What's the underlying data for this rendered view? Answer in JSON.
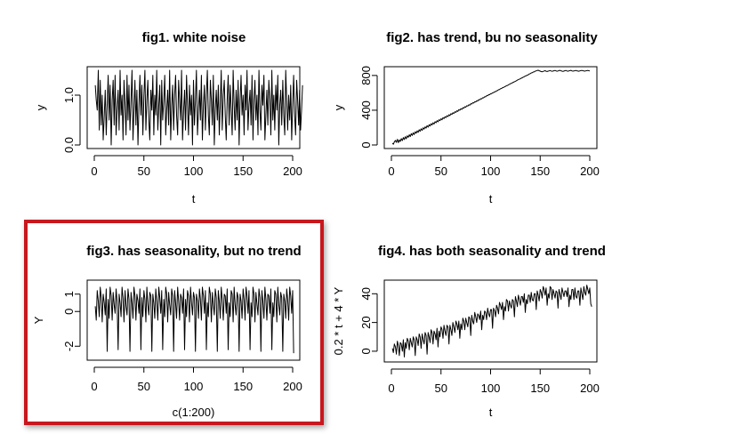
{
  "colors": {
    "highlight": "#c8171e",
    "line": "#000000"
  },
  "chart_data": [
    {
      "type": "line",
      "title": "fig1. white noise",
      "xlabel": "t",
      "ylabel": "y",
      "xlim": [
        0,
        200
      ],
      "ylim": [
        0,
        1.5
      ],
      "xticks": [
        0,
        50,
        100,
        150,
        200
      ],
      "yticks": [
        0.0,
        1.0
      ],
      "ytick_labels": [
        "0.0",
        "1.0"
      ],
      "series": [
        {
          "x_start": 1,
          "x_step": 1,
          "values": [
            1.2,
            0.9,
            0.7,
            1.5,
            0.3,
            1.3,
            0.4,
            1.0,
            0.1,
            0.6,
            1.1,
            0.2,
            0.8,
            1.4,
            0.5,
            1.2,
            0.0,
            0.9,
            1.3,
            0.4,
            1.4,
            0.2,
            0.7,
            1.1,
            0.3,
            1.5,
            0.6,
            1.0,
            0.1,
            1.3,
            0.8,
            0.2,
            1.4,
            0.5,
            1.2,
            0.3,
            0.9,
            1.5,
            0.1,
            0.7,
            1.3,
            0.4,
            1.1,
            0.0,
            0.8,
            1.4,
            0.6,
            1.2,
            0.2,
            1.0,
            1.5,
            0.3,
            0.9,
            1.3,
            0.5,
            0.1,
            1.1,
            0.7,
            1.4,
            0.2,
            1.0,
            0.6,
            1.5,
            0.3,
            0.8,
            1.2,
            0.0,
            1.3,
            0.5,
            0.9,
            1.4,
            0.2,
            0.7,
            1.1,
            0.4,
            1.5,
            0.1,
            0.8,
            1.2,
            0.3,
            1.0,
            1.4,
            0.6,
            0.2,
            1.3,
            0.9,
            0.5,
            1.5,
            0.1,
            0.7,
            1.1,
            0.3,
            1.4,
            0.8,
            0.2,
            1.2,
            0.6,
            1.0,
            0.0,
            1.3,
            0.4,
            0.9,
            1.5,
            0.2,
            0.7,
            1.1,
            0.5,
            1.4,
            0.1,
            0.8,
            1.2,
            0.3,
            1.0,
            1.5,
            0.6,
            0.2,
            1.3,
            0.9,
            0.4,
            1.4,
            0.0,
            0.7,
            1.1,
            0.5,
            1.2,
            0.2,
            0.8,
            1.5,
            0.3,
            1.0,
            1.3,
            0.6,
            0.1,
            0.9,
            1.4,
            0.4,
            1.2,
            0.7,
            0.2,
            1.5,
            0.8,
            0.3,
            1.1,
            0.5,
            1.3,
            0.0,
            0.9,
            1.4,
            0.6,
            1.0,
            0.2,
            1.2,
            0.7,
            1.5,
            0.3,
            0.8,
            1.1,
            0.4,
            1.4,
            0.1,
            0.9,
            1.3,
            0.5,
            1.0,
            0.2,
            1.5,
            0.7,
            0.3,
            1.2,
            0.8,
            1.4,
            0.1,
            0.6,
            1.1,
            0.4,
            1.3,
            0.9,
            0.2,
            1.5,
            0.5,
            1.0,
            0.3,
            1.2,
            0.7,
            1.4,
            0.0,
            0.8,
            1.1,
            0.4,
            1.3,
            0.6,
            0.2,
            1.5,
            0.9,
            0.3,
            1.0,
            0.5,
            1.2,
            0.1,
            0.8,
            1.4,
            0.6,
            0.2,
            1.3,
            0.9,
            0.4,
            1.1,
            0.3,
            0.7,
            1.2
          ]
        }
      ]
    },
    {
      "type": "line",
      "title": "fig2. has trend, bu no seasonality",
      "xlabel": "t",
      "ylabel": "y",
      "xlim": [
        0,
        200
      ],
      "ylim": [
        0,
        860
      ],
      "xticks": [
        0,
        50,
        100,
        150,
        200
      ],
      "yticks": [
        0,
        400,
        800
      ],
      "ytick_labels": [
        "0",
        "400",
        "800"
      ],
      "series": [
        {
          "x_start": 1,
          "x_step": 1,
          "values": [
            22,
            8,
            35,
            52,
            30,
            64,
            27,
            58,
            40,
            73,
            50,
            85,
            62,
            95,
            71,
            105,
            88,
            118,
            96,
            130,
            110,
            140,
            120,
            152,
            135,
            163,
            145,
            175,
            158,
            186,
            168,
            198,
            182,
            209,
            194,
            222,
            205,
            233,
            218,
            245,
            230,
            256,
            241,
            268,
            255,
            279,
            266,
            291,
            279,
            302,
            290,
            314,
            303,
            325,
            314,
            337,
            327,
            348,
            338,
            360,
            351,
            371,
            362,
            383,
            375,
            394,
            386,
            406,
            399,
            417,
            410,
            429,
            423,
            440,
            434,
            452,
            447,
            463,
            458,
            475,
            471,
            486,
            482,
            498,
            495,
            509,
            506,
            521,
            519,
            532,
            530,
            544,
            543,
            555,
            554,
            567,
            567,
            578,
            578,
            590,
            590,
            601,
            602,
            613,
            613,
            624,
            626,
            636,
            637,
            647,
            650,
            659,
            661,
            670,
            674,
            682,
            685,
            693,
            698,
            705,
            709,
            716,
            722,
            728,
            733,
            739,
            746,
            751,
            757,
            762,
            770,
            774,
            781,
            785,
            794,
            797,
            805,
            808,
            818,
            820,
            829,
            831,
            840,
            842,
            850,
            853,
            858,
            860,
            855,
            850,
            845,
            843,
            847,
            852,
            855,
            849,
            846,
            850,
            853,
            857,
            852,
            848,
            851,
            855,
            858,
            853,
            849,
            852,
            856,
            859,
            854,
            850,
            847,
            851,
            855,
            858,
            852,
            849,
            853,
            856,
            859,
            853,
            850,
            852,
            855,
            858,
            854,
            851,
            849,
            853,
            856,
            858,
            855,
            852,
            850,
            853,
            856,
            858,
            855,
            852
          ]
        }
      ]
    },
    {
      "type": "line",
      "title": "fig3. has seasonality, but no trend",
      "xlabel": "c(1:200)",
      "ylabel": "Y",
      "xlim": [
        0,
        200
      ],
      "ylim": [
        -2.6,
        1.6
      ],
      "xticks": [
        0,
        50,
        100,
        150,
        200
      ],
      "yticks": [
        -2,
        0,
        1
      ],
      "ytick_labels": [
        "-2",
        "0",
        "1"
      ],
      "series": [
        {
          "x_start": 1,
          "x_step": 1,
          "values": [
            0.3,
            -0.5,
            1.2,
            0.6,
            -0.3,
            1.4,
            0.8,
            -0.6,
            1.0,
            0.5,
            -0.2,
            1.3,
            -2.3,
            0.7,
            -0.4,
            1.4,
            0.9,
            -0.5,
            1.1,
            0.4,
            -0.1,
            1.3,
            0.6,
            -2.2,
            1.0,
            0.5,
            -0.3,
            1.4,
            0.8,
            -0.6,
            1.2,
            0.3,
            -0.2,
            1.3,
            0.7,
            -2.3,
            1.1,
            0.5,
            -0.4,
            1.4,
            0.9,
            -0.5,
            1.0,
            0.6,
            -0.1,
            1.3,
            -2.2,
            0.8,
            -0.3,
            1.2,
            0.7,
            -0.6,
            1.4,
            0.4,
            -0.2,
            1.1,
            0.9,
            -2.3,
            1.0,
            0.5,
            -0.4,
            1.3,
            0.6,
            -0.5,
            1.4,
            0.8,
            -0.1,
            1.2,
            -2.2,
            0.7,
            -0.3,
            1.4,
            1.0,
            -0.6,
            1.1,
            0.4,
            -0.2,
            1.3,
            0.9,
            -2.3,
            1.2,
            0.5,
            -0.4,
            1.4,
            0.6,
            -0.5,
            1.0,
            0.8,
            -0.1,
            1.3,
            -2.2,
            0.7,
            -0.3,
            1.2,
            0.9,
            -0.6,
            1.4,
            0.5,
            -0.2,
            1.1,
            0.8,
            -2.3,
            1.0,
            0.6,
            -0.4,
            1.3,
            0.7,
            -0.5,
            1.4,
            0.9,
            -0.1,
            1.2,
            -2.2,
            0.5,
            -0.3,
            1.4,
            1.0,
            -0.6,
            1.1,
            0.4,
            -0.2,
            1.3,
            0.8,
            -2.3,
            1.2,
            0.6,
            -0.4,
            1.4,
            0.7,
            -0.5,
            1.0,
            0.9,
            -0.1,
            1.3,
            -2.2,
            0.5,
            -0.3,
            1.2,
            1.0,
            -0.6,
            1.4,
            0.4,
            -0.2,
            1.1,
            0.8,
            -2.3,
            1.0,
            0.6,
            -0.4,
            1.3,
            0.7,
            -0.5,
            1.4,
            0.9,
            -0.1,
            1.2,
            -2.2,
            0.5,
            -0.3,
            1.4,
            1.0,
            -0.6,
            1.1,
            0.4,
            -0.2,
            1.3,
            0.8,
            -2.3,
            1.2,
            0.6,
            -0.4,
            1.4,
            0.7,
            -0.5,
            1.0,
            0.9,
            -0.1,
            1.3,
            -2.2,
            0.5,
            -0.3,
            1.2,
            1.0,
            -0.6,
            1.4,
            0.4,
            -0.2,
            1.1,
            0.8,
            -2.3,
            1.0,
            0.6,
            -0.4,
            1.3,
            0.7,
            -0.5,
            1.4,
            0.9,
            -0.1,
            1.2,
            -2.4
          ]
        }
      ]
    },
    {
      "type": "line",
      "title": "fig4. has both seasonality and trend",
      "xlabel": "t",
      "ylabel": "0.2 * t + 4 * Y",
      "xlim": [
        0,
        200
      ],
      "ylim": [
        -5,
        47
      ],
      "xticks": [
        0,
        50,
        100,
        150,
        200
      ],
      "yticks": [
        0,
        20,
        40
      ],
      "ytick_labels": [
        "0",
        "20",
        "40"
      ],
      "series": [
        {
          "x_start": 1,
          "x_step": 1,
          "values": [
            2,
            -1,
            5,
            3,
            -2,
            7,
            4,
            -3,
            6,
            5,
            0,
            8,
            -4,
            6,
            2,
            9,
            7,
            1,
            9,
            6,
            3,
            10,
            8,
            -3,
            10,
            8,
            4,
            12,
            10,
            2,
            12,
            8,
            5,
            13,
            11,
            -2,
            13,
            10,
            6,
            15,
            13,
            5,
            14,
            12,
            8,
            16,
            3,
            14,
            10,
            17,
            15,
            9,
            18,
            14,
            11,
            18,
            17,
            5,
            18,
            15,
            11,
            20,
            17,
            13,
            21,
            19,
            15,
            21,
            9,
            19,
            15,
            23,
            21,
            15,
            23,
            20,
            17,
            24,
            23,
            11,
            25,
            21,
            19,
            27,
            24,
            20,
            26,
            25,
            22,
            28,
            15,
            25,
            22,
            28,
            27,
            22,
            30,
            26,
            24,
            29,
            29,
            16,
            30,
            28,
            24,
            32,
            30,
            26,
            34,
            32,
            29,
            34,
            22,
            31,
            28,
            36,
            35,
            28,
            35,
            32,
            30,
            36,
            35,
            24,
            38,
            35,
            31,
            39,
            36,
            32,
            38,
            38,
            34,
            40,
            27,
            36,
            33,
            39,
            39,
            34,
            41,
            36,
            35,
            40,
            40,
            29,
            42,
            39,
            35,
            43,
            41,
            37,
            45,
            43,
            39,
            44,
            32,
            40,
            37,
            45,
            44,
            36,
            43,
            40,
            37,
            42,
            41,
            30,
            43,
            40,
            36,
            44,
            41,
            38,
            42,
            42,
            38,
            44,
            31,
            39,
            36,
            43,
            43,
            36,
            44,
            38,
            37,
            42,
            42,
            32,
            44,
            40,
            36,
            45,
            41,
            39,
            46,
            43,
            40,
            44,
            33,
            31
          ]
        }
      ]
    }
  ]
}
